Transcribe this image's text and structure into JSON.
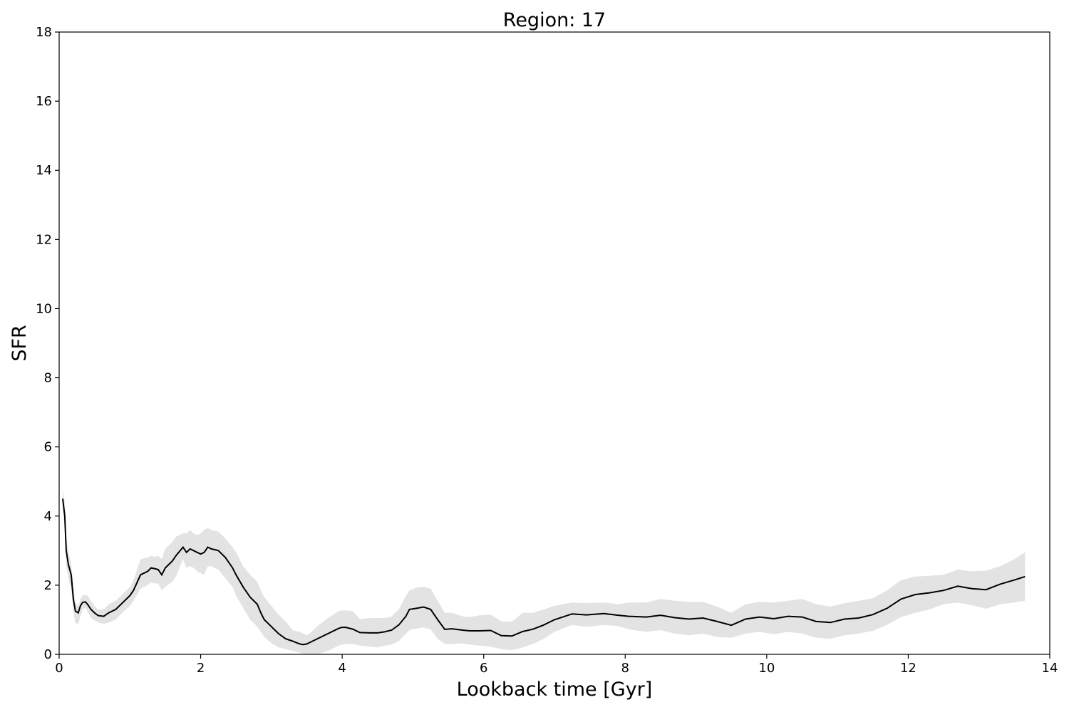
{
  "chart_data": {
    "type": "line",
    "title": "Region: 17",
    "xlabel": "Lookback time [Gyr]",
    "ylabel": "SFR",
    "xlim": [
      0,
      14
    ],
    "ylim": [
      0,
      18
    ],
    "x_ticks": [
      "0",
      "2",
      "4",
      "6",
      "8",
      "10",
      "12",
      "14"
    ],
    "y_ticks": [
      "0",
      "2",
      "4",
      "6",
      "8",
      "10",
      "12",
      "14",
      "16",
      "18"
    ],
    "grid": false,
    "legend": "none",
    "colors": {
      "line": "#000000",
      "band": "#e3e3e3"
    },
    "series": [
      {
        "x": [
          0.05,
          0.08,
          0.1,
          0.13,
          0.17,
          0.2,
          0.23,
          0.27,
          0.3,
          0.33,
          0.37,
          0.4,
          0.45,
          0.5,
          0.55,
          0.63,
          0.7,
          0.8,
          0.9,
          1.0,
          1.05,
          1.15,
          1.25,
          1.3,
          1.35,
          1.4,
          1.45,
          1.5,
          1.6,
          1.65,
          1.75,
          1.8,
          1.85,
          1.9,
          1.95,
          2.0,
          2.05,
          2.1,
          2.15,
          2.25,
          2.35,
          2.45,
          2.5,
          2.6,
          2.7,
          2.8,
          2.85,
          2.9,
          3.0,
          3.1,
          3.2,
          3.3,
          3.4,
          3.45,
          3.5,
          3.55,
          3.65,
          3.8,
          3.95,
          4.0,
          4.05,
          4.15,
          4.25,
          4.4,
          4.5,
          4.6,
          4.7,
          4.8,
          4.9,
          4.95,
          5.05,
          5.15,
          5.25,
          5.35,
          5.45,
          5.55,
          5.7,
          5.8,
          5.95,
          6.1,
          6.25,
          6.4,
          6.55,
          6.7,
          6.85,
          7.0,
          7.25,
          7.45,
          7.7,
          7.9,
          8.05,
          8.3,
          8.5,
          8.7,
          8.9,
          9.1,
          9.3,
          9.5,
          9.7,
          9.9,
          10.1,
          10.3,
          10.5,
          10.7,
          10.9,
          11.1,
          11.3,
          11.5,
          11.7,
          11.9,
          12.1,
          12.3,
          12.5,
          12.7,
          12.9,
          13.1,
          13.3,
          13.5,
          13.65
        ],
        "y": [
          4.5,
          4.0,
          3.0,
          2.6,
          2.3,
          1.6,
          1.25,
          1.2,
          1.4,
          1.5,
          1.52,
          1.45,
          1.3,
          1.2,
          1.12,
          1.1,
          1.2,
          1.3,
          1.5,
          1.7,
          1.85,
          2.3,
          2.4,
          2.5,
          2.48,
          2.45,
          2.3,
          2.5,
          2.7,
          2.85,
          3.1,
          2.95,
          3.05,
          3.0,
          2.95,
          2.9,
          2.95,
          3.1,
          3.05,
          3.0,
          2.8,
          2.5,
          2.3,
          1.95,
          1.65,
          1.45,
          1.2,
          1.0,
          0.8,
          0.6,
          0.45,
          0.38,
          0.3,
          0.28,
          0.3,
          0.35,
          0.45,
          0.6,
          0.75,
          0.78,
          0.78,
          0.73,
          0.63,
          0.62,
          0.62,
          0.65,
          0.7,
          0.85,
          1.1,
          1.3,
          1.33,
          1.37,
          1.3,
          1.0,
          0.72,
          0.74,
          0.7,
          0.68,
          0.68,
          0.69,
          0.54,
          0.53,
          0.66,
          0.73,
          0.85,
          1.0,
          1.17,
          1.14,
          1.18,
          1.13,
          1.1,
          1.08,
          1.13,
          1.06,
          1.02,
          1.05,
          0.95,
          0.84,
          1.02,
          1.08,
          1.03,
          1.1,
          1.08,
          0.95,
          0.92,
          1.02,
          1.05,
          1.15,
          1.33,
          1.6,
          1.73,
          1.78,
          1.85,
          1.97,
          1.9,
          1.87,
          2.03,
          2.15,
          2.25
        ],
        "upper": [
          4.8,
          4.4,
          3.4,
          3.0,
          2.6,
          2.0,
          1.5,
          1.4,
          1.6,
          1.7,
          1.72,
          1.7,
          1.55,
          1.4,
          1.3,
          1.3,
          1.45,
          1.55,
          1.75,
          1.95,
          2.15,
          2.75,
          2.8,
          2.85,
          2.82,
          2.85,
          2.75,
          3.05,
          3.25,
          3.4,
          3.5,
          3.5,
          3.6,
          3.5,
          3.45,
          3.5,
          3.6,
          3.65,
          3.6,
          3.55,
          3.35,
          3.1,
          2.95,
          2.55,
          2.3,
          2.1,
          1.85,
          1.65,
          1.4,
          1.15,
          0.95,
          0.7,
          0.65,
          0.6,
          0.55,
          0.62,
          0.82,
          1.05,
          1.25,
          1.27,
          1.27,
          1.25,
          1.02,
          1.05,
          1.05,
          1.05,
          1.1,
          1.3,
          1.7,
          1.85,
          1.93,
          1.95,
          1.9,
          1.55,
          1.2,
          1.2,
          1.1,
          1.08,
          1.13,
          1.15,
          0.95,
          0.95,
          1.2,
          1.2,
          1.3,
          1.4,
          1.5,
          1.48,
          1.5,
          1.45,
          1.5,
          1.5,
          1.6,
          1.55,
          1.52,
          1.52,
          1.38,
          1.2,
          1.45,
          1.52,
          1.5,
          1.55,
          1.6,
          1.45,
          1.38,
          1.48,
          1.55,
          1.62,
          1.85,
          2.15,
          2.25,
          2.27,
          2.3,
          2.45,
          2.4,
          2.42,
          2.55,
          2.75,
          2.95
        ],
        "lower": [
          4.2,
          3.6,
          2.6,
          2.2,
          1.9,
          1.25,
          0.9,
          0.88,
          1.1,
          1.3,
          1.35,
          1.25,
          1.05,
          0.98,
          0.92,
          0.88,
          0.92,
          1.0,
          1.22,
          1.4,
          1.55,
          1.9,
          2.0,
          2.08,
          2.05,
          2.05,
          1.85,
          1.95,
          2.1,
          2.25,
          2.75,
          2.5,
          2.55,
          2.5,
          2.4,
          2.35,
          2.3,
          2.55,
          2.55,
          2.45,
          2.2,
          1.95,
          1.7,
          1.35,
          1.0,
          0.8,
          0.65,
          0.5,
          0.32,
          0.2,
          0.15,
          0.1,
          0.05,
          0.02,
          0.02,
          0.0,
          0.0,
          0.1,
          0.25,
          0.28,
          0.3,
          0.3,
          0.25,
          0.22,
          0.2,
          0.25,
          0.28,
          0.38,
          0.6,
          0.7,
          0.75,
          0.78,
          0.72,
          0.45,
          0.3,
          0.3,
          0.32,
          0.28,
          0.25,
          0.22,
          0.15,
          0.12,
          0.2,
          0.3,
          0.45,
          0.65,
          0.85,
          0.8,
          0.85,
          0.82,
          0.72,
          0.65,
          0.7,
          0.6,
          0.55,
          0.6,
          0.5,
          0.48,
          0.6,
          0.65,
          0.58,
          0.65,
          0.6,
          0.48,
          0.45,
          0.55,
          0.6,
          0.68,
          0.85,
          1.08,
          1.2,
          1.3,
          1.45,
          1.5,
          1.42,
          1.32,
          1.45,
          1.5,
          1.55
        ]
      }
    ]
  }
}
